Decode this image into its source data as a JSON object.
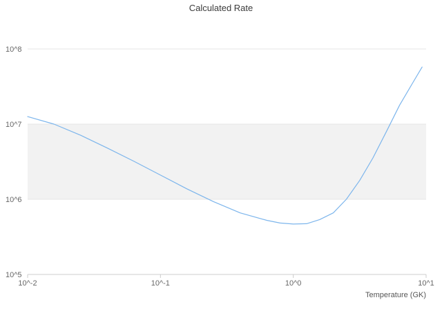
{
  "chart_data": {
    "type": "line",
    "title": "Calculated Rate",
    "xlabel": "Temperature (GK)",
    "ylabel": "",
    "x_scale": "log",
    "y_scale": "log",
    "xlim": [
      0.01,
      10
    ],
    "ylim": [
      100000,
      100000000
    ],
    "x_tick_values": [
      0.01,
      0.1,
      1,
      10
    ],
    "x_tick_labels": [
      "10^-2",
      "10^-1",
      "10^0",
      "10^1"
    ],
    "y_tick_values": [
      100000,
      1000000,
      10000000,
      100000000
    ],
    "y_tick_labels": [
      "10^5",
      "10^6",
      "10^7",
      "10^8"
    ],
    "grid": true,
    "legend": "none",
    "plot_band": {
      "from": 1000000,
      "to": 10000000,
      "color": "#f2f2f2"
    },
    "colors": {
      "line": "#7cb5ec",
      "grid": "#e6e6e6",
      "axis": "#cccccc",
      "background": "#ffffff"
    },
    "series": [
      {
        "name": "Calculated Rate",
        "x": [
          0.01,
          0.0158,
          0.0251,
          0.0398,
          0.0631,
          0.1,
          0.158,
          0.251,
          0.398,
          0.631,
          0.794,
          1.0,
          1.26,
          1.58,
          2.0,
          2.51,
          3.16,
          3.98,
          5.01,
          6.31,
          7.94,
          9.33
        ],
        "y": [
          12600000,
          10000000,
          7100000,
          4800000,
          3200000,
          2100000,
          1380000,
          930000,
          660000,
          525000,
          484000,
          468000,
          473000,
          537000,
          660000,
          1000000,
          1780000,
          3550000,
          7900000,
          17800000,
          35500000,
          57500000
        ]
      }
    ]
  }
}
